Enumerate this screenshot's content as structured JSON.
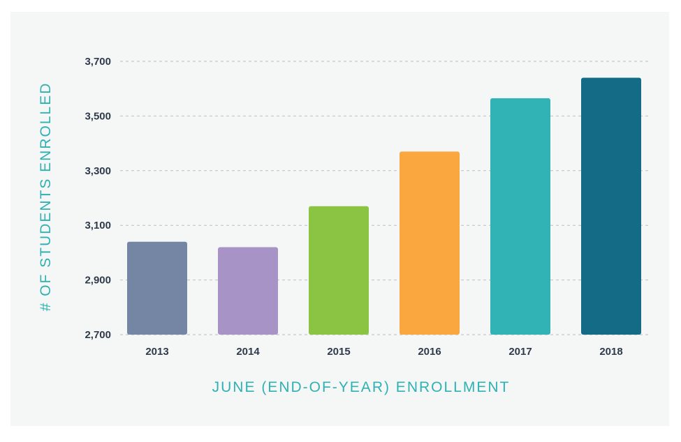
{
  "chart_data": {
    "type": "bar",
    "title": "",
    "xlabel": "JUNE (END-OF-YEAR) ENROLLMENT",
    "ylabel": "# OF STUDENTS ENROLLED",
    "categories": [
      "2013",
      "2014",
      "2015",
      "2016",
      "2017",
      "2018"
    ],
    "values": [
      3040,
      3020,
      3170,
      3370,
      3565,
      3640
    ],
    "colors": [
      "#7486a4",
      "#a793c6",
      "#8bc443",
      "#f9a73e",
      "#31b2b4",
      "#136b86"
    ],
    "ylim": [
      2700,
      3700
    ],
    "yticks": [
      2700,
      2900,
      3100,
      3300,
      3500,
      3700
    ],
    "ytick_labels": [
      "2,700",
      "2,900",
      "3,100",
      "3,300",
      "3,500",
      "3,700"
    ],
    "grid": true
  }
}
